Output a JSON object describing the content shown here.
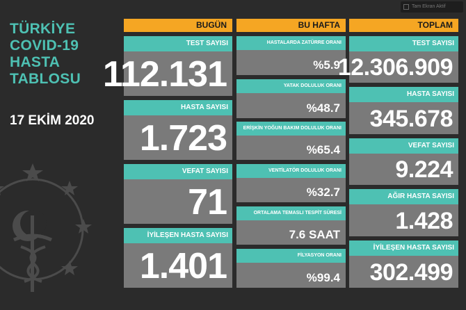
{
  "title": {
    "line1": "TÜRKİYE",
    "line2": "COVID-19",
    "line3": "HASTA",
    "line4": "TABLOSU"
  },
  "date": "17 EKİM 2020",
  "top_link": "Tam Ekran Aktif",
  "columns": {
    "today": "BUGÜN",
    "week": "BU HAFTA",
    "total": "TOPLAM"
  },
  "today": [
    {
      "label": "TEST SAYISI",
      "value": "112.131"
    },
    {
      "label": "HASTA SAYISI",
      "value": "1.723"
    },
    {
      "label": "VEFAT SAYISI",
      "value": "71"
    },
    {
      "label": "İYİLEŞEN HASTA SAYISI",
      "value": "1.401"
    }
  ],
  "week": [
    {
      "label": "HASTALARDA ZATÜRRE ORANI",
      "value": "%5.9"
    },
    {
      "label": "YATAK DOLULUK ORANI",
      "value": "%48.7"
    },
    {
      "label": "ERİŞKİN YOĞUN BAKIM DOLULUK ORANI",
      "value": "%65.4"
    },
    {
      "label": "VENTİLATÖR DOLULUK ORANI",
      "value": "%32.7"
    },
    {
      "label": "ORTALAMA TEMASLI TESPİT SÜRESİ",
      "value": "7.6 SAAT"
    },
    {
      "label": "FİLYASYON ORANI",
      "value": "%99.4"
    }
  ],
  "total": [
    {
      "label": "TEST SAYISI",
      "value": "12.306.909"
    },
    {
      "label": "HASTA SAYISI",
      "value": "345.678"
    },
    {
      "label": "VEFAT SAYISI",
      "value": "9.224"
    },
    {
      "label": "AĞIR HASTA SAYISI",
      "value": "1.428"
    },
    {
      "label": "İYİLEŞEN HASTA SAYISI",
      "value": "302.499"
    }
  ],
  "colors": {
    "accent": "#f5a623",
    "teal": "#4ec1b3",
    "card": "#7a7a7a",
    "background": "#2b2b2b"
  },
  "icons": {
    "emblem": "ministry-emblem-icon"
  }
}
